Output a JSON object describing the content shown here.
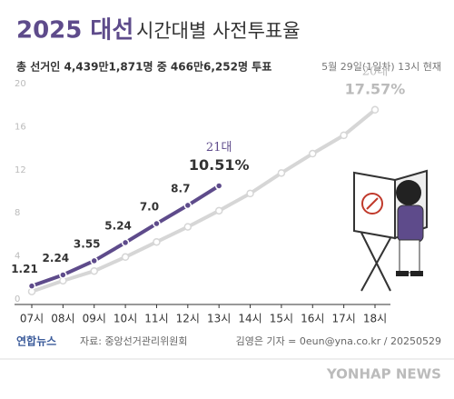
{
  "chart_data": {
    "type": "line",
    "title": "2025 대선",
    "subtitle": "시간대별 사전투표율",
    "summary": "총 선거인 4,439만1,871명 중 466만6,252명 투표",
    "as_of": "5월 29일(1일차) 13시 현재",
    "categories": [
      "07시",
      "08시",
      "09시",
      "10시",
      "11시",
      "12시",
      "13시",
      "14시",
      "15시",
      "16시",
      "17시",
      "18시"
    ],
    "series": [
      {
        "name": "21대",
        "color": "#5e4b8b",
        "values": [
          1.21,
          2.24,
          3.55,
          5.24,
          7.0,
          8.7,
          10.51,
          null,
          null,
          null,
          null,
          null
        ],
        "value_labels": [
          "1.21",
          "2.24",
          "3.55",
          "5.24",
          "7.0",
          "8.7",
          "10.51%",
          null,
          null,
          null,
          null,
          null
        ]
      },
      {
        "name": "20대",
        "color": "#d6d6d6",
        "values": [
          0.7,
          1.7,
          2.6,
          3.9,
          5.3,
          6.7,
          8.2,
          9.8,
          11.7,
          13.5,
          15.2,
          17.57
        ],
        "value_labels": [
          null,
          null,
          null,
          null,
          null,
          null,
          null,
          null,
          null,
          null,
          null,
          "17.57%"
        ]
      }
    ],
    "ylim": [
      0,
      20
    ],
    "yticks": [
      0,
      4,
      8,
      12,
      16,
      20
    ],
    "grid": false,
    "source": "자료: 중앙선거관리위원회",
    "credit": "김영은 기자 = 0eun@yna.co.kr / 20250529",
    "logo": "연합뉴스",
    "watermark": "YONHAP NEWS"
  }
}
